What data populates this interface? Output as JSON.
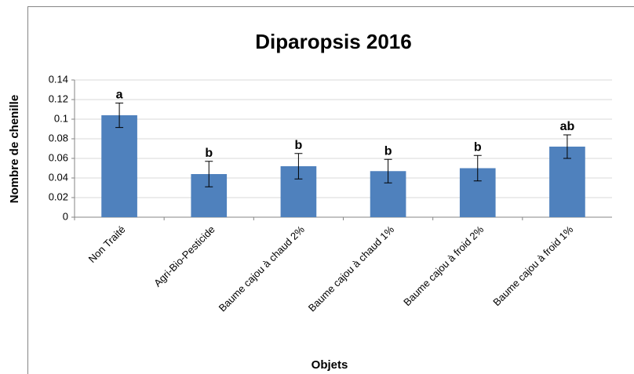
{
  "chart_data": {
    "type": "bar",
    "title": "Diparopsis 2016",
    "x_label": "Objets",
    "y_label": "Nombre de chenille",
    "categories": [
      "Non Traité",
      "Agri-Bio-Pesticide",
      "Baume cajou à chaud 2%",
      "Baume cajou à chaud 1%",
      "Baume cajou à froid 2%",
      "Baume cajou à froid 1%"
    ],
    "values": [
      0.104,
      0.044,
      0.052,
      0.047,
      0.05,
      0.072
    ],
    "errors": [
      0.0125,
      0.013,
      0.013,
      0.012,
      0.013,
      0.012
    ],
    "annotations": [
      "a",
      "b",
      "b",
      "b",
      "b",
      "ab"
    ],
    "color": "#4f81bd",
    "ylim": [
      0,
      0.14
    ],
    "yticks": [
      0,
      0.02,
      0.04,
      0.06,
      0.08,
      0.1,
      0.12,
      0.14
    ],
    "grid": true
  }
}
